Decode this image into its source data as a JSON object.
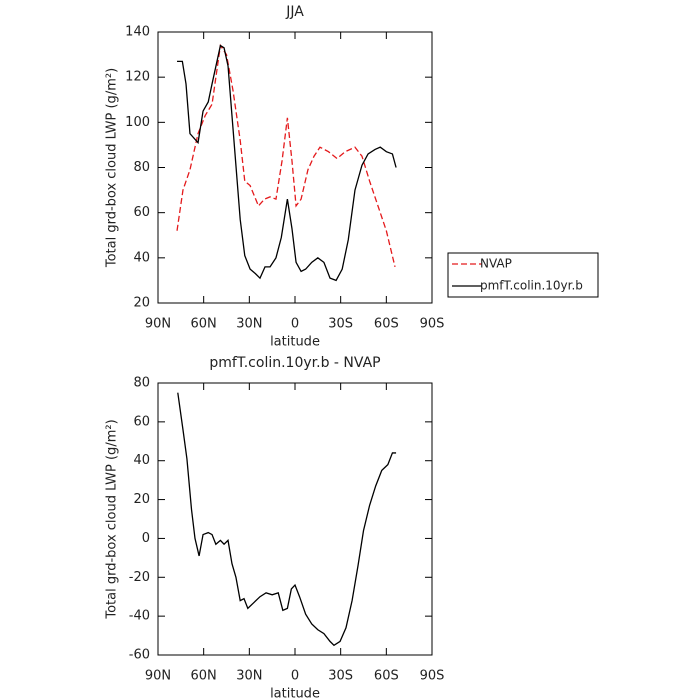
{
  "chart_data": [
    {
      "type": "line",
      "title": "JJA",
      "xlabel": "latitude",
      "ylabel": "Total grd-box cloud LWP (g/m²)",
      "xlim": [
        90,
        -90
      ],
      "ylim": [
        20,
        140
      ],
      "xticks": [
        {
          "value": 90,
          "label": "90N"
        },
        {
          "value": 60,
          "label": "60N"
        },
        {
          "value": 30,
          "label": "30N"
        },
        0,
        {
          "value": -30,
          "label": "30S"
        },
        {
          "value": -60,
          "label": "60S"
        },
        {
          "value": -90,
          "label": "90S"
        }
      ],
      "yticks": [
        20,
        40,
        60,
        80,
        100,
        120,
        140
      ],
      "legend": "outside-right",
      "series": [
        {
          "name": "NVAP",
          "color": "#e41a1c",
          "style": "dashed",
          "x": [
            77.5,
            73.6,
            69,
            63.7,
            59,
            54.5,
            49,
            45,
            40.7,
            36,
            33,
            29.5,
            24,
            20,
            16.4,
            12.5,
            8.5,
            5,
            2,
            -0.7,
            -4,
            -8.5,
            -12.5,
            -16.4,
            -22,
            -27.6,
            -33,
            -39.4,
            -44,
            -49,
            -54.5,
            -60,
            -65.7
          ],
          "values": [
            52,
            70,
            79,
            95,
            103,
            108,
            134,
            130,
            114,
            92,
            74,
            72,
            63,
            66,
            67,
            66,
            83,
            102,
            83,
            63,
            66,
            79,
            85,
            89,
            87,
            84,
            87,
            89,
            85,
            74,
            63,
            52,
            36
          ]
        },
        {
          "name": "pmfT.colin.10yr.b",
          "color": "#000000",
          "style": "solid",
          "x": [
            77.5,
            74,
            71.6,
            69,
            63.7,
            60.4,
            57,
            54.5,
            49,
            46.6,
            44,
            40.7,
            36,
            33,
            29.5,
            26,
            23,
            19.7,
            16.4,
            12.5,
            9,
            5,
            2,
            -0.7,
            -4,
            -7,
            -11,
            -15,
            -19,
            -23,
            -27,
            -31,
            -35,
            -39.4,
            -44,
            -48,
            -52.6,
            -56,
            -60,
            -64,
            -66.4
          ],
          "values": [
            127,
            127,
            117,
            95,
            91,
            105,
            109,
            117,
            134,
            133,
            125,
            97,
            57,
            41,
            35,
            33,
            31,
            36,
            36,
            40,
            49,
            66,
            53,
            38,
            34,
            35,
            38,
            40,
            38,
            31,
            30,
            35,
            48,
            70,
            81,
            86,
            88,
            89,
            87,
            86,
            80
          ]
        }
      ]
    },
    {
      "type": "line",
      "title": "pmfT.colin.10yr.b - NVAP",
      "xlabel": "latitude",
      "ylabel": "Total grd-box cloud LWP (g/m²)",
      "xlim": [
        90,
        -90
      ],
      "ylim": [
        -60,
        80
      ],
      "xticks": [
        {
          "value": 90,
          "label": "90N"
        },
        {
          "value": 60,
          "label": "60N"
        },
        {
          "value": 30,
          "label": "30N"
        },
        0,
        {
          "value": -30,
          "label": "30S"
        },
        {
          "value": -60,
          "label": "60S"
        },
        {
          "value": -90,
          "label": "90S"
        }
      ],
      "yticks": [
        -60,
        -40,
        -20,
        0,
        20,
        40,
        60,
        80
      ],
      "series": [
        {
          "color": "#000000",
          "style": "solid",
          "x": [
            77,
            73.6,
            71,
            68,
            65.7,
            63,
            60.4,
            57,
            54.5,
            52,
            49,
            46.6,
            44,
            41.4,
            38.8,
            36,
            33.5,
            31,
            27,
            23,
            19,
            15,
            11,
            8,
            5,
            2.4,
            0,
            -3,
            -7,
            -11,
            -15,
            -19,
            -23,
            -25.6,
            -29.6,
            -33.5,
            -37.5,
            -41.4,
            -45,
            -49,
            -53,
            -57,
            -61,
            -64,
            -66.4
          ],
          "values": [
            75,
            56,
            41,
            15,
            0,
            -9,
            2,
            3,
            2,
            -3,
            -1,
            -3,
            -1,
            -13,
            -20,
            -32,
            -31,
            -36,
            -33,
            -30,
            -28,
            -29,
            -28,
            -37,
            -36,
            -26,
            -24,
            -30,
            -39,
            -44,
            -47,
            -49,
            -53,
            -55,
            -53,
            -46,
            -32,
            -14,
            4,
            17,
            27,
            35,
            38,
            44,
            44
          ]
        }
      ]
    }
  ]
}
